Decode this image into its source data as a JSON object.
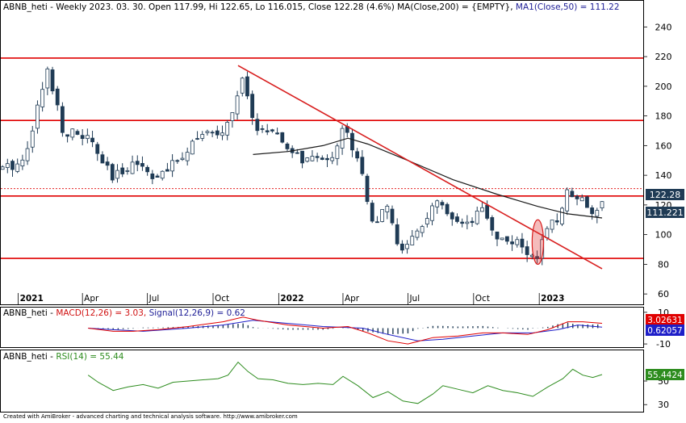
{
  "header": {
    "symbol": "ABNB_heti",
    "info": " - Weekly 2023. 03. 30. Open 117.99, Hi 122.65, Lo 116.015, Close 122.28 (4.6%) ",
    "ma200": "MA(Close,200) = {EMPTY}, ",
    "ma50": "MA1(Close,50) = 111.22"
  },
  "macd_header": {
    "symbol": "ABNB_heti",
    "dash": " - ",
    "macd": "MACD(12,26) = 3.03, ",
    "signal": "Signal(12,26,9) = 0.62"
  },
  "rsi_header": {
    "symbol": "ABNB_heti",
    "dash": " - ",
    "rsi": "RSI(14) = 55.44"
  },
  "footer": "Created with AmiBroker - advanced charting and technical analysis software. http://www.amibroker.com",
  "badges": {
    "close": "122.28",
    "ma50": "111.221",
    "macd": "3.02631",
    "signal": "0.62057",
    "rsi": "55.4424"
  },
  "colors": {
    "bull_candle": "#ffffff",
    "bear_candle": "#1f3b55",
    "ma50_line": "#1a1a1a",
    "resistance_lines": "#e00000",
    "trendline": "#d81e1e",
    "macd_line": "#e00000",
    "signal_line": "#1e1ec8",
    "rsi_line": "#2d8c1e",
    "badge_close": "#1f3b55",
    "badge_ma": "#1f3b55",
    "badge_macd": "#e00000",
    "badge_signal": "#1e1ec8",
    "badge_rsi": "#2d8c1e"
  },
  "chart_data": [
    {
      "type": "candlestick",
      "title": "ABNB_heti - Weekly",
      "x_axis": {
        "range": [
          "2020-12-11",
          "2023-03-30"
        ],
        "tick_labels": [
          {
            "label": "2021",
            "date": "2021-01-01",
            "bold": true
          },
          {
            "label": "Apr",
            "date": "2021-04-01"
          },
          {
            "label": "Jul",
            "date": "2021-07-01"
          },
          {
            "label": "Oct",
            "date": "2021-10-01"
          },
          {
            "label": "2022",
            "date": "2022-01-01",
            "bold": true
          },
          {
            "label": "Apr",
            "date": "2022-04-01"
          },
          {
            "label": "Jul",
            "date": "2022-07-01"
          },
          {
            "label": "Oct",
            "date": "2022-10-01"
          },
          {
            "label": "2023",
            "date": "2023-01-01",
            "bold": true
          }
        ]
      },
      "y_axis": {
        "range": [
          53,
          250
        ],
        "ticks": [
          "60",
          "80",
          "100",
          "120",
          "140",
          "160",
          "180",
          "200",
          "220",
          "240"
        ]
      },
      "close_anchors": [
        [
          "2020-12-11",
          144
        ],
        [
          "2021-01-08",
          150
        ],
        [
          "2021-02-12",
          212
        ],
        [
          "2021-03-05",
          170
        ],
        [
          "2021-04-09",
          165
        ],
        [
          "2021-05-14",
          137
        ],
        [
          "2021-06-11",
          150
        ],
        [
          "2021-07-16",
          138
        ],
        [
          "2021-08-13",
          150
        ],
        [
          "2021-09-10",
          168
        ],
        [
          "2021-10-08",
          166
        ],
        [
          "2021-10-22",
          175
        ],
        [
          "2021-11-12",
          205
        ],
        [
          "2021-11-26",
          174
        ],
        [
          "2021-12-17",
          170
        ],
        [
          "2022-01-14",
          158
        ],
        [
          "2022-02-04",
          150
        ],
        [
          "2022-02-25",
          150
        ],
        [
          "2022-03-18",
          154
        ],
        [
          "2022-04-01",
          172
        ],
        [
          "2022-04-22",
          153
        ],
        [
          "2022-05-13",
          108
        ],
        [
          "2022-06-03",
          117
        ],
        [
          "2022-06-17",
          93
        ],
        [
          "2022-07-01",
          91
        ],
        [
          "2022-07-22",
          108
        ],
        [
          "2022-08-12",
          122
        ],
        [
          "2022-09-02",
          107
        ],
        [
          "2022-09-23",
          105
        ],
        [
          "2022-10-14",
          117
        ],
        [
          "2022-11-04",
          97
        ],
        [
          "2022-11-25",
          96
        ],
        [
          "2022-12-16",
          87
        ],
        [
          "2022-12-30",
          87
        ],
        [
          "2023-01-13",
          103
        ],
        [
          "2023-01-27",
          111
        ],
        [
          "2023-02-10",
          130
        ],
        [
          "2023-03-03",
          124
        ],
        [
          "2023-03-17",
          116
        ],
        [
          "2023-03-30",
          122.28
        ]
      ],
      "last_bar": {
        "date": "2023-03-30",
        "open": 117.99,
        "high": 122.65,
        "low": 116.015,
        "close": 122.28,
        "change_pct": 4.6
      },
      "ma50": {
        "name": "MA1(Close,50)",
        "last": 111.22,
        "points": [
          [
            "2021-11-26",
            154
          ],
          [
            "2022-01-14",
            156
          ],
          [
            "2022-03-04",
            160
          ],
          [
            "2022-04-08",
            165
          ],
          [
            "2022-05-06",
            161
          ],
          [
            "2022-07-01",
            150
          ],
          [
            "2022-09-02",
            137
          ],
          [
            "2022-11-04",
            127
          ],
          [
            "2022-12-30",
            119
          ],
          [
            "2023-02-10",
            114
          ],
          [
            "2023-03-30",
            111.22
          ]
        ]
      },
      "horizontal_lines": [
        {
          "value": 219,
          "style": "solid"
        },
        {
          "value": 177,
          "style": "solid"
        },
        {
          "value": 131,
          "style": "dotted"
        },
        {
          "value": 126,
          "style": "solid"
        },
        {
          "value": 84,
          "style": "solid"
        }
      ],
      "trendline": {
        "from": [
          "2021-11-05",
          214
        ],
        "to": [
          "2023-03-30",
          77
        ]
      },
      "highlight_ellipse": {
        "center": [
          "2022-12-30",
          95
        ],
        "rx_days": 8,
        "ry_value": 15
      }
    },
    {
      "type": "line",
      "title": "MACD(12,26) / Signal(12,26,9)",
      "y_axis": {
        "range": [
          -12,
          13
        ],
        "ticks": [
          "10",
          "-10"
        ]
      },
      "series": [
        {
          "name": "MACD(12,26)",
          "last": 3.03,
          "points": [
            [
              "2021-04-09",
              0
            ],
            [
              "2021-05-14",
              -2
            ],
            [
              "2021-06-11",
              -2
            ],
            [
              "2021-07-16",
              -1
            ],
            [
              "2021-08-27",
              1
            ],
            [
              "2021-10-15",
              4
            ],
            [
              "2021-11-12",
              7
            ],
            [
              "2021-12-03",
              5
            ],
            [
              "2022-01-14",
              2
            ],
            [
              "2022-03-04",
              0
            ],
            [
              "2022-04-08",
              1
            ],
            [
              "2022-05-06",
              -3
            ],
            [
              "2022-06-03",
              -8
            ],
            [
              "2022-07-01",
              -10
            ],
            [
              "2022-08-05",
              -6
            ],
            [
              "2022-09-09",
              -5
            ],
            [
              "2022-10-14",
              -3
            ],
            [
              "2022-11-11",
              -3
            ],
            [
              "2022-12-16",
              -4
            ],
            [
              "2023-01-13",
              -1
            ],
            [
              "2023-02-10",
              4
            ],
            [
              "2023-03-03",
              4
            ],
            [
              "2023-03-30",
              3.03
            ]
          ]
        },
        {
          "name": "Signal(12,26,9)",
          "last": 0.62,
          "points": [
            [
              "2021-04-09",
              0
            ],
            [
              "2021-05-14",
              -1
            ],
            [
              "2021-06-25",
              -2
            ],
            [
              "2021-08-27",
              0
            ],
            [
              "2021-10-15",
              2
            ],
            [
              "2021-11-26",
              5
            ],
            [
              "2022-01-14",
              3
            ],
            [
              "2022-03-04",
              1
            ],
            [
              "2022-04-29",
              0
            ],
            [
              "2022-06-03",
              -4
            ],
            [
              "2022-07-15",
              -8
            ],
            [
              "2022-08-19",
              -7
            ],
            [
              "2022-09-30",
              -5
            ],
            [
              "2022-11-11",
              -3
            ],
            [
              "2022-12-23",
              -3
            ],
            [
              "2023-01-27",
              -1
            ],
            [
              "2023-02-24",
              2
            ],
            [
              "2023-03-30",
              0.62
            ]
          ]
        }
      ]
    },
    {
      "type": "line",
      "title": "RSI(14)",
      "y_axis": {
        "range": [
          24,
          76
        ],
        "ticks": [
          "50",
          "30"
        ]
      },
      "series": [
        {
          "name": "RSI(14)",
          "last": 55.44,
          "points": [
            [
              "2021-04-09",
              55
            ],
            [
              "2021-04-23",
              49
            ],
            [
              "2021-05-14",
              42
            ],
            [
              "2021-06-04",
              45
            ],
            [
              "2021-06-25",
              47
            ],
            [
              "2021-07-16",
              44
            ],
            [
              "2021-08-06",
              49
            ],
            [
              "2021-08-27",
              50
            ],
            [
              "2021-09-17",
              51
            ],
            [
              "2021-10-08",
              52
            ],
            [
              "2021-10-22",
              55
            ],
            [
              "2021-11-05",
              66
            ],
            [
              "2021-11-19",
              58
            ],
            [
              "2021-12-03",
              52
            ],
            [
              "2021-12-24",
              51
            ],
            [
              "2022-01-14",
              48
            ],
            [
              "2022-02-04",
              47
            ],
            [
              "2022-02-25",
              48
            ],
            [
              "2022-03-18",
              47
            ],
            [
              "2022-04-01",
              54
            ],
            [
              "2022-04-22",
              46
            ],
            [
              "2022-05-13",
              36
            ],
            [
              "2022-06-03",
              41
            ],
            [
              "2022-06-24",
              33
            ],
            [
              "2022-07-15",
              31
            ],
            [
              "2022-08-05",
              39
            ],
            [
              "2022-08-19",
              46
            ],
            [
              "2022-09-09",
              43
            ],
            [
              "2022-09-30",
              40
            ],
            [
              "2022-10-21",
              46
            ],
            [
              "2022-11-11",
              42
            ],
            [
              "2022-12-02",
              40
            ],
            [
              "2022-12-23",
              37
            ],
            [
              "2023-01-13",
              45
            ],
            [
              "2023-02-03",
              52
            ],
            [
              "2023-02-17",
              60
            ],
            [
              "2023-03-03",
              55
            ],
            [
              "2023-03-17",
              53
            ],
            [
              "2023-03-30",
              55.44
            ]
          ]
        }
      ]
    }
  ]
}
